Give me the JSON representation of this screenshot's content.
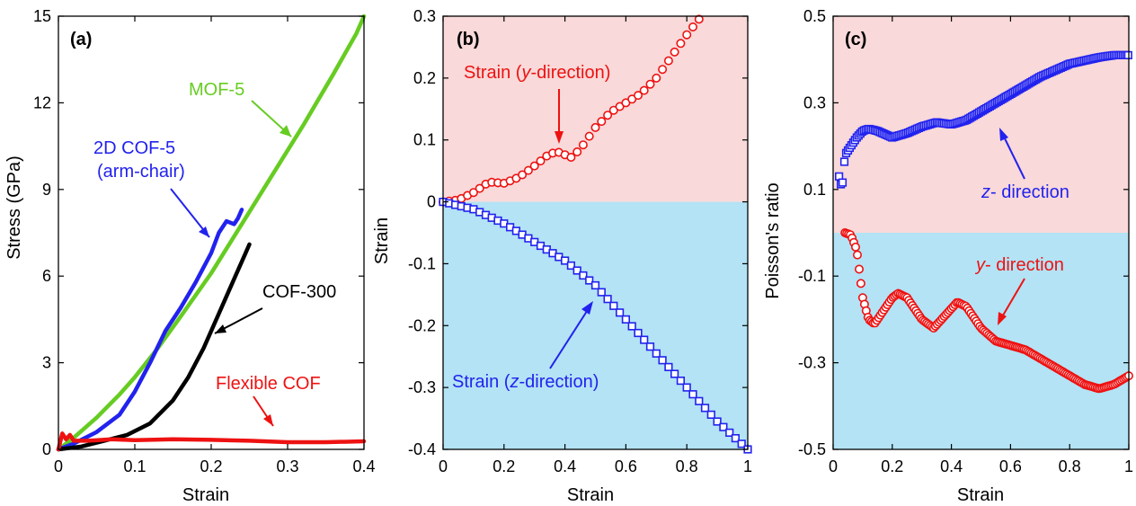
{
  "chart_data": [
    {
      "type": "line",
      "panel_label": "(a)",
      "xlabel": "Strain",
      "ylabel": "Stress (GPa)",
      "xlim": [
        0,
        0.4
      ],
      "ylim": [
        0,
        15
      ],
      "xticks": [
        0,
        0.1,
        0.2,
        0.3,
        0.4
      ],
      "yticks": [
        0,
        3,
        6,
        9,
        12,
        15
      ],
      "xtick_labels": [
        "0",
        "0.1",
        "0.2",
        "0.3",
        "0.4"
      ],
      "ytick_labels": [
        "0",
        "3",
        "6",
        "9",
        "12",
        "15"
      ],
      "grid": false,
      "series": [
        {
          "name": "MOF-5",
          "color": "#66cc22",
          "x": [
            0,
            0.02,
            0.05,
            0.08,
            0.1,
            0.13,
            0.16,
            0.2,
            0.24,
            0.28,
            0.32,
            0.36,
            0.39,
            0.4
          ],
          "y": [
            0,
            0.4,
            1.1,
            1.9,
            2.5,
            3.5,
            4.6,
            6.1,
            7.8,
            9.5,
            11.2,
            13.0,
            14.4,
            15
          ]
        },
        {
          "name": "2D COF-5 (arm-chair)",
          "color": "#2222ee",
          "x": [
            0,
            0.02,
            0.05,
            0.08,
            0.1,
            0.12,
            0.14,
            0.16,
            0.18,
            0.2,
            0.21,
            0.22,
            0.23,
            0.235,
            0.24
          ],
          "y": [
            0,
            0.2,
            0.6,
            1.2,
            2.0,
            3.0,
            4.1,
            4.9,
            5.8,
            6.8,
            7.5,
            7.9,
            7.8,
            8.0,
            8.3
          ]
        },
        {
          "name": "COF-300",
          "color": "#000000",
          "x": [
            0,
            0.03,
            0.06,
            0.09,
            0.12,
            0.15,
            0.17,
            0.19,
            0.21,
            0.23,
            0.245,
            0.25
          ],
          "y": [
            0,
            0.1,
            0.3,
            0.5,
            0.9,
            1.7,
            2.5,
            3.5,
            4.7,
            5.9,
            6.8,
            7.1
          ]
        },
        {
          "name": "Flexible COF",
          "color": "#ee1111",
          "x": [
            0,
            0.005,
            0.01,
            0.015,
            0.02,
            0.04,
            0.07,
            0.1,
            0.15,
            0.2,
            0.25,
            0.3,
            0.35,
            0.4
          ],
          "y": [
            0,
            0.55,
            0.35,
            0.5,
            0.3,
            0.3,
            0.35,
            0.32,
            0.35,
            0.33,
            0.3,
            0.25,
            0.25,
            0.28
          ]
        }
      ],
      "annotations": [
        {
          "text": "MOF-5",
          "color": "#66cc22"
        },
        {
          "lines": [
            "2D COF-5",
            "(arm-chair)"
          ],
          "color": "#2222ee"
        },
        {
          "text": "COF-300",
          "color": "#000000"
        },
        {
          "text": "Flexible COF",
          "color": "#ee1111"
        }
      ]
    },
    {
      "type": "scatter",
      "panel_label": "(b)",
      "xlabel": "Strain",
      "ylabel": "Strain",
      "xlim": [
        0,
        1
      ],
      "ylim": [
        -0.4,
        0.3
      ],
      "xticks": [
        0,
        0.2,
        0.4,
        0.6,
        0.8,
        1
      ],
      "yticks": [
        -0.4,
        -0.3,
        -0.2,
        -0.1,
        0,
        0.1,
        0.2,
        0.3
      ],
      "xtick_labels": [
        "0",
        "0.2",
        "0.4",
        "0.6",
        "0.8",
        "1"
      ],
      "ytick_labels": [
        "-0.4",
        "-0.3",
        "-0.2",
        "-0.1",
        "0",
        "0.1",
        "0.2",
        "0.3"
      ],
      "grid": false,
      "background": [
        {
          "from": 0,
          "to": 0.3,
          "color": "#f9d9d9"
        },
        {
          "from": -0.4,
          "to": 0,
          "color": "#b3e3f5"
        }
      ],
      "series": [
        {
          "name": "Strain (y-direction)",
          "color": "#ee1111",
          "marker": "circle",
          "key_x": [
            0,
            0.05,
            0.1,
            0.15,
            0.2,
            0.25,
            0.3,
            0.35,
            0.38,
            0.42,
            0.45,
            0.5,
            0.55,
            0.6,
            0.65,
            0.7,
            0.75,
            0.8,
            0.84
          ],
          "key_y": [
            0,
            0.003,
            0.015,
            0.032,
            0.03,
            0.04,
            0.058,
            0.078,
            0.08,
            0.072,
            0.085,
            0.12,
            0.145,
            0.16,
            0.175,
            0.2,
            0.235,
            0.27,
            0.295
          ]
        },
        {
          "name": "Strain (z-direction)",
          "color": "#2222ee",
          "marker": "square",
          "key_x": [
            0,
            0.1,
            0.2,
            0.3,
            0.4,
            0.5,
            0.6,
            0.7,
            0.8,
            0.9,
            1.0
          ],
          "key_y": [
            0,
            -0.012,
            -0.035,
            -0.065,
            -0.095,
            -0.135,
            -0.19,
            -0.245,
            -0.3,
            -0.355,
            -0.4
          ]
        }
      ],
      "annotations": [
        {
          "prefix": "Strain (",
          "italic": "y",
          "suffix": "-direction)",
          "color": "#ee1111"
        },
        {
          "prefix": "Strain (",
          "italic": "z",
          "suffix": "-direction)",
          "color": "#2222ee"
        }
      ]
    },
    {
      "type": "scatter",
      "panel_label": "(c)",
      "xlabel": "Strain",
      "ylabel": "Poisson's ratio",
      "xlim": [
        0,
        1
      ],
      "ylim": [
        -0.5,
        0.5
      ],
      "xticks": [
        0,
        0.2,
        0.4,
        0.6,
        0.8,
        1
      ],
      "yticks": [
        -0.5,
        -0.3,
        -0.1,
        0.1,
        0.3,
        0.5
      ],
      "xtick_labels": [
        "0",
        "0.2",
        "0.4",
        "0.6",
        "0.8",
        "1"
      ],
      "ytick_labels": [
        "-0.5",
        "-0.3",
        "-0.1",
        "0.1",
        "0.3",
        "0.5"
      ],
      "grid": false,
      "background": [
        {
          "from": 0,
          "to": 0.5,
          "color": "#f9d9d9"
        },
        {
          "from": -0.5,
          "to": 0,
          "color": "#b3e3f5"
        }
      ],
      "series": [
        {
          "name": "z- direction",
          "color": "#2222ee",
          "marker": "square",
          "key_x": [
            0.02,
            0.03,
            0.04,
            0.06,
            0.08,
            0.1,
            0.12,
            0.15,
            0.2,
            0.25,
            0.3,
            0.35,
            0.4,
            0.45,
            0.5,
            0.55,
            0.6,
            0.7,
            0.8,
            0.9,
            0.95,
            1.0
          ],
          "key_y": [
            0.13,
            0.1,
            0.18,
            0.2,
            0.22,
            0.235,
            0.24,
            0.235,
            0.22,
            0.23,
            0.245,
            0.255,
            0.25,
            0.26,
            0.28,
            0.3,
            0.32,
            0.36,
            0.39,
            0.405,
            0.41,
            0.41
          ]
        },
        {
          "name": "y- direction",
          "color": "#ee1111",
          "marker": "circle",
          "key_x": [
            0.04,
            0.06,
            0.08,
            0.1,
            0.12,
            0.14,
            0.17,
            0.2,
            0.22,
            0.25,
            0.3,
            0.34,
            0.38,
            0.42,
            0.45,
            0.5,
            0.55,
            0.6,
            0.65,
            0.7,
            0.75,
            0.8,
            0.85,
            0.9,
            0.95,
            1.0
          ],
          "key_y": [
            0,
            -0.005,
            -0.04,
            -0.15,
            -0.2,
            -0.21,
            -0.18,
            -0.15,
            -0.14,
            -0.15,
            -0.2,
            -0.22,
            -0.19,
            -0.16,
            -0.17,
            -0.22,
            -0.25,
            -0.26,
            -0.27,
            -0.29,
            -0.31,
            -0.33,
            -0.35,
            -0.36,
            -0.35,
            -0.33
          ]
        }
      ],
      "annotations": [
        {
          "italic": "z",
          "suffix": "- direction",
          "color": "#2222ee"
        },
        {
          "italic": "y",
          "suffix": "- direction",
          "color": "#ee1111"
        }
      ]
    }
  ]
}
